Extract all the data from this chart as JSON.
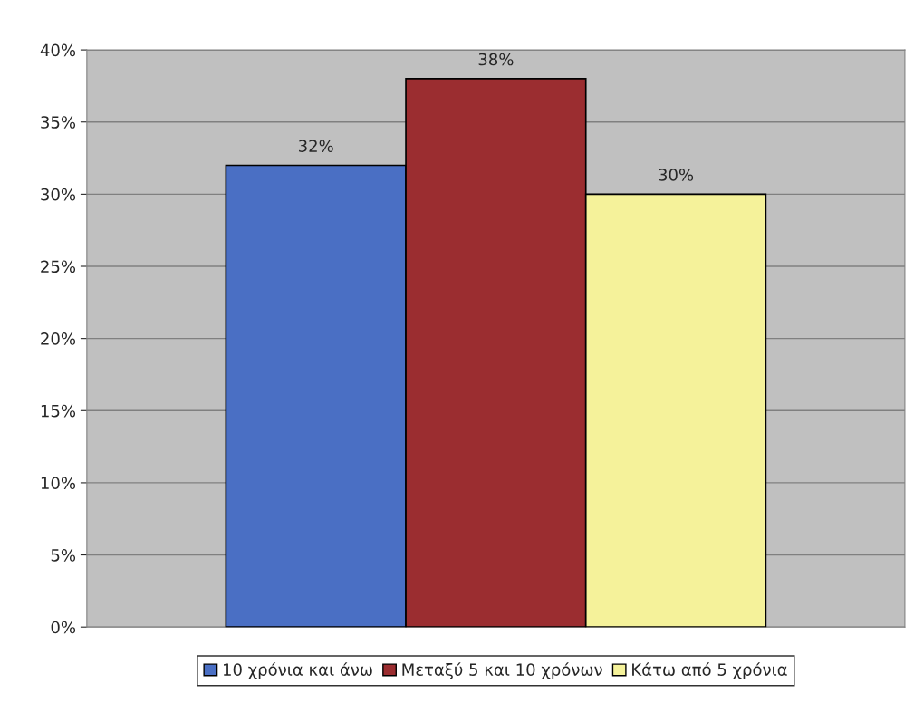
{
  "chart_data": {
    "type": "bar",
    "categories": [
      null
    ],
    "series": [
      {
        "name": "10 χρόνια και άνω",
        "color": "#4a6fc4",
        "values": [
          32
        ],
        "value_labels": [
          "32%"
        ]
      },
      {
        "name": "Μεταξύ 5 και 10 χρόνων",
        "color": "#9b2d30",
        "values": [
          38
        ],
        "value_labels": [
          "38%"
        ]
      },
      {
        "name": "Κάτω από 5 χρόνια",
        "color": "#f5f29a",
        "values": [
          30
        ],
        "value_labels": [
          "30%"
        ]
      }
    ],
    "ylim": [
      0,
      40
    ],
    "yticks": [
      {
        "value": 0,
        "label": "0%"
      },
      {
        "value": 5,
        "label": "5%"
      },
      {
        "value": 10,
        "label": "10%"
      },
      {
        "value": 15,
        "label": "15%"
      },
      {
        "value": 20,
        "label": "20%"
      },
      {
        "value": 25,
        "label": "25%"
      },
      {
        "value": 30,
        "label": "30%"
      },
      {
        "value": 35,
        "label": "35%"
      },
      {
        "value": 40,
        "label": "40%"
      }
    ],
    "grid": "y",
    "legend": "bottom"
  }
}
